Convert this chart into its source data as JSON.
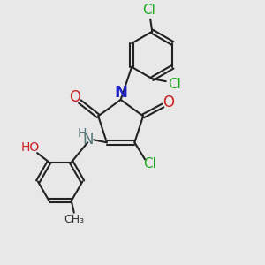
{
  "bg_color": "#e8e8e8",
  "figsize": [
    3.0,
    3.0
  ],
  "dpi": 100,
  "xlim": [
    0,
    1
  ],
  "ylim": [
    0,
    1
  ],
  "colors": {
    "bond": "#222222",
    "N": "#2020cc",
    "O": "#cc2020",
    "Cl": "#22aa22",
    "NH": "#557777",
    "C": "#222222"
  }
}
